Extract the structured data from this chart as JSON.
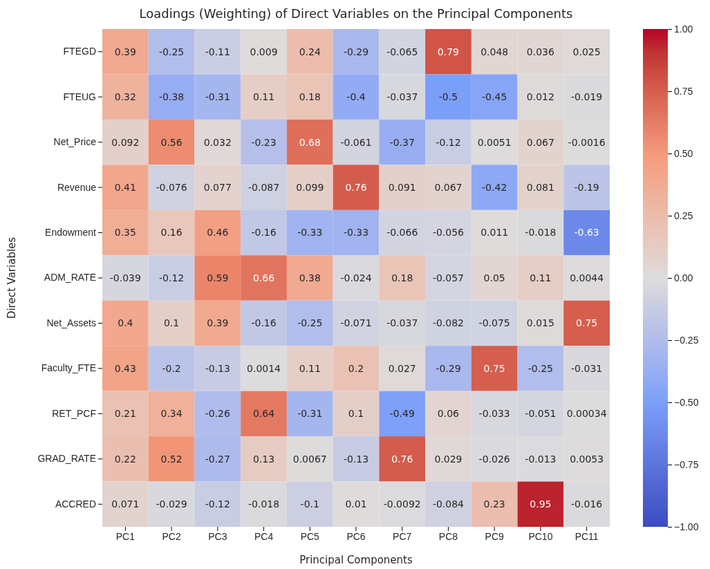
{
  "chart_data": {
    "type": "heatmap",
    "title": "Loadings (Weighting) of Direct Variables on the Principal Components",
    "xlabel": "Principal Components",
    "ylabel": "Direct Variables",
    "categories": [
      "PC1",
      "PC2",
      "PC3",
      "PC4",
      "PC5",
      "PC6",
      "PC7",
      "PC8",
      "PC9",
      "PC10",
      "PC11"
    ],
    "y_categories": [
      "FTEGD",
      "FTEUG",
      "Net_Price",
      "Revenue",
      "Endowment",
      "ADM_RATE",
      "Net_Assets",
      "Faculty_FTE",
      "RET_PCF",
      "GRAD_RATE",
      "ACCRED"
    ],
    "cells": [
      [
        0.39,
        -0.25,
        -0.11,
        0.009,
        0.24,
        -0.29,
        -0.065,
        0.79,
        0.048,
        0.036,
        0.025
      ],
      [
        0.32,
        -0.38,
        -0.31,
        0.11,
        0.18,
        -0.4,
        -0.037,
        -0.5,
        -0.45,
        0.012,
        -0.019
      ],
      [
        0.092,
        0.56,
        0.032,
        -0.23,
        0.68,
        -0.061,
        -0.37,
        -0.12,
        0.0051,
        0.067,
        -0.0016
      ],
      [
        0.41,
        -0.076,
        0.077,
        -0.087,
        0.099,
        0.76,
        0.091,
        0.067,
        -0.42,
        0.081,
        -0.19
      ],
      [
        0.35,
        0.16,
        0.46,
        -0.16,
        -0.33,
        -0.33,
        -0.066,
        -0.056,
        0.011,
        -0.018,
        -0.63
      ],
      [
        -0.039,
        -0.12,
        0.59,
        0.66,
        0.38,
        -0.024,
        0.18,
        -0.057,
        0.05,
        0.11,
        0.0044
      ],
      [
        0.4,
        0.1,
        0.39,
        -0.16,
        -0.25,
        -0.071,
        -0.037,
        -0.082,
        -0.075,
        0.015,
        0.75
      ],
      [
        0.43,
        -0.2,
        -0.13,
        0.0014,
        0.11,
        0.2,
        0.027,
        -0.29,
        0.75,
        -0.25,
        -0.031
      ],
      [
        0.21,
        0.34,
        -0.26,
        0.64,
        -0.31,
        0.1,
        -0.49,
        0.06,
        -0.033,
        -0.051,
        0.00034
      ],
      [
        0.22,
        0.52,
        -0.27,
        0.13,
        0.0067,
        -0.13,
        0.76,
        0.029,
        -0.026,
        -0.013,
        0.0053
      ],
      [
        0.071,
        -0.029,
        -0.12,
        -0.018,
        -0.1,
        0.01,
        -0.0092,
        -0.084,
        0.23,
        0.95,
        -0.016
      ]
    ],
    "data_labels": true,
    "clim": [
      -1,
      1
    ],
    "cticks": [
      {
        "value": -1,
        "label": "−1.00"
      },
      {
        "value": -0.75,
        "label": "−0.75"
      },
      {
        "value": -0.5,
        "label": "−0.50"
      },
      {
        "value": -0.25,
        "label": "−0.25"
      },
      {
        "value": 0,
        "label": "0.00"
      },
      {
        "value": 0.25,
        "label": "0.25"
      },
      {
        "value": 0.5,
        "label": "0.50"
      },
      {
        "value": 0.75,
        "label": "0.75"
      },
      {
        "value": 1,
        "label": "1.00"
      }
    ]
  }
}
